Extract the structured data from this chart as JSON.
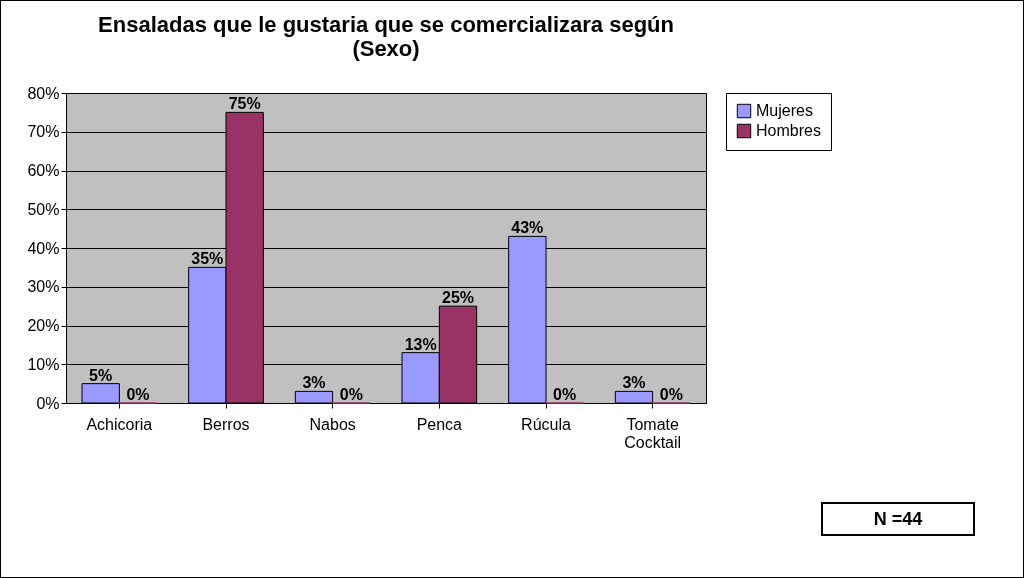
{
  "chart_data": {
    "type": "bar",
    "title": "Ensaladas que le gustaria que se comercializara según (Sexo)",
    "categories": [
      "Achicoria",
      "Berros",
      "Nabos",
      "Penca",
      "Rúcula",
      "Tomate Cocktail"
    ],
    "series": [
      {
        "name": "Mujeres",
        "color": "#9999ff",
        "values": [
          5,
          35,
          3,
          13,
          43,
          3
        ],
        "value_labels": [
          "5%",
          "35%",
          "3%",
          "13%",
          "43%",
          "3%"
        ]
      },
      {
        "name": "Hombres",
        "color": "#993366",
        "values": [
          0,
          75,
          0,
          25,
          0,
          0
        ],
        "value_labels": [
          "0%",
          "75%",
          "0%",
          "25%",
          "0%",
          "0%"
        ]
      }
    ],
    "ylim": [
      0,
      80
    ],
    "yticks": [
      {
        "value": 0,
        "label": "0%"
      },
      {
        "value": 10,
        "label": "10%"
      },
      {
        "value": 20,
        "label": "20%"
      },
      {
        "value": 30,
        "label": "30%"
      },
      {
        "value": 40,
        "label": "40%"
      },
      {
        "value": 50,
        "label": "50%"
      },
      {
        "value": 60,
        "label": "60%"
      },
      {
        "value": 70,
        "label": "70%"
      },
      {
        "value": 80,
        "label": "80%"
      }
    ],
    "grid": "y",
    "legend": "right",
    "annotations": [
      "N =44"
    ]
  }
}
